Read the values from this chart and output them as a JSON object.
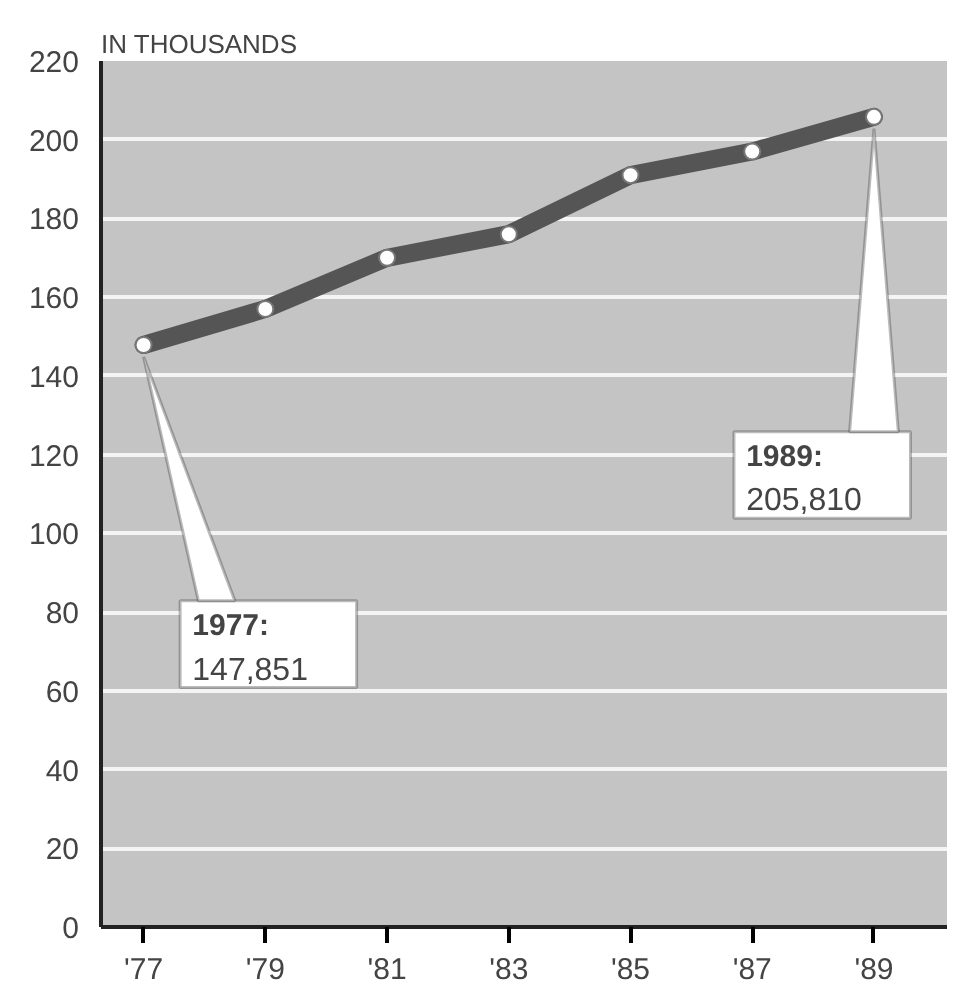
{
  "chart_data": {
    "type": "line",
    "ylabel": "IN THOUSANDS",
    "x": [
      1977,
      1979,
      1981,
      1983,
      1985,
      1987,
      1989
    ],
    "series": [
      {
        "color": "#555555",
        "values": [
          147.851,
          157,
          170,
          176,
          191,
          197,
          205.81
        ]
      }
    ],
    "xlim": [
      1976.3,
      1990.2
    ],
    "ylim": [
      0,
      220
    ],
    "xticks": [
      {
        "value": 1977,
        "label": "'77"
      },
      {
        "value": 1979,
        "label": "'79"
      },
      {
        "value": 1981,
        "label": "'81"
      },
      {
        "value": 1983,
        "label": "'83"
      },
      {
        "value": 1985,
        "label": "'85"
      },
      {
        "value": 1987,
        "label": "'87"
      },
      {
        "value": 1989,
        "label": "'89"
      }
    ],
    "yticks": [
      0,
      20,
      40,
      60,
      80,
      100,
      120,
      140,
      160,
      180,
      200,
      220
    ],
    "grid": "y",
    "marker": "circle",
    "line_style": "solid",
    "annotations": [
      {
        "text": "1977: 147,851",
        "x": 1977,
        "y": 147.851
      },
      {
        "text": "1989: 205,810",
        "x": 1989,
        "y": 205.81
      }
    ]
  }
}
